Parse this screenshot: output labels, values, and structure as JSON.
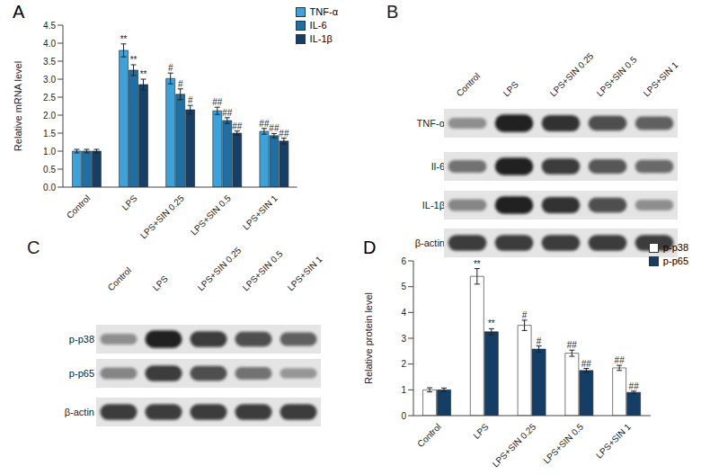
{
  "chart_data": [
    {
      "type": "bar",
      "title": "A",
      "y_label": "Relative mRNA level",
      "categories": [
        "Control",
        "LPS",
        "LPS+SIN 0.25",
        "LPS+SIN 0.5",
        "LPS+SIN 1"
      ],
      "ylim": [
        0,
        4.5
      ],
      "yticks": [
        {
          "value": 0,
          "label": "0.0"
        },
        0.5,
        {
          "value": 1,
          "label": "1.0"
        },
        1.5,
        {
          "value": 2,
          "label": "2.0"
        },
        2.5,
        {
          "value": 3,
          "label": "3.0"
        },
        3.5,
        {
          "value": 4,
          "label": "4.0"
        },
        4.5
      ],
      "grid": false,
      "legend": "top right",
      "series": [
        {
          "name": "TNF-α",
          "color": "#3aa3dc",
          "values": [
            1.0,
            3.8,
            3.02,
            2.12,
            1.55
          ],
          "error": [
            0.05,
            0.18,
            0.15,
            0.1,
            0.08
          ],
          "annotations": [
            null,
            "**",
            "#",
            "##",
            "##"
          ]
        },
        {
          "name": "IL-6",
          "color": "#1f6fa3",
          "values": [
            1.0,
            3.25,
            2.58,
            1.85,
            1.43
          ],
          "error": [
            0.05,
            0.15,
            0.15,
            0.08,
            0.06
          ],
          "annotations": [
            null,
            "**",
            "#",
            "##",
            "##"
          ]
        },
        {
          "name": "IL-1β",
          "color": "#153f66",
          "values": [
            1.0,
            2.85,
            2.15,
            1.5,
            1.28
          ],
          "error": [
            0.05,
            0.15,
            0.12,
            0.06,
            0.08
          ],
          "annotations": [
            null,
            "**",
            "#",
            "##",
            "##"
          ]
        }
      ]
    },
    {
      "type": "blot",
      "title": "B",
      "categories": [
        "Control",
        "LPS",
        "LPS+SIN 0.25",
        "LPS+SIN 0.5",
        "LPS+SIN 1"
      ],
      "series": [
        {
          "name": "TNF-α",
          "values": [
            0.35,
            0.95,
            0.85,
            0.7,
            0.6
          ]
        },
        {
          "name": "Il-6",
          "values": [
            0.5,
            0.95,
            0.8,
            0.65,
            0.55
          ]
        },
        {
          "name": "IL-1β",
          "values": [
            0.4,
            0.95,
            0.85,
            0.7,
            0.35
          ]
        },
        {
          "name": "β-actin",
          "values": [
            0.8,
            0.8,
            0.8,
            0.8,
            0.8
          ]
        }
      ]
    },
    {
      "type": "blot",
      "title": "C",
      "categories": [
        "Control",
        "LPS",
        "LPS+SIN 0.25",
        "LPS+SIN 0.5",
        "LPS+SIN 1"
      ],
      "series": [
        {
          "name": "p-p38",
          "values": [
            0.35,
            0.95,
            0.8,
            0.7,
            0.6
          ]
        },
        {
          "name": "p-p65",
          "values": [
            0.4,
            0.8,
            0.7,
            0.5,
            0.3
          ]
        },
        {
          "name": "β-actin",
          "values": [
            0.8,
            0.8,
            0.8,
            0.8,
            0.8
          ]
        }
      ]
    },
    {
      "type": "bar",
      "title": "D",
      "y_label": "Relative protein level",
      "categories": [
        "Control",
        "LPS",
        "LPS+SIN 0.25",
        "LPS+SIN 0.5",
        "LPS+SIN 1"
      ],
      "ylim": [
        0,
        6
      ],
      "yticks": [
        0,
        1,
        2,
        3,
        4,
        5,
        6
      ],
      "grid": false,
      "legend": "top right",
      "series": [
        {
          "name": "p-p38",
          "color": "#ffffff",
          "values": [
            1.0,
            5.4,
            3.5,
            2.42,
            1.85
          ],
          "error": [
            0.08,
            0.3,
            0.2,
            0.12,
            0.1
          ],
          "annotations": [
            null,
            "**",
            "#",
            "##",
            "##"
          ]
        },
        {
          "name": "p-p65",
          "color": "#153e66",
          "values": [
            1.0,
            3.25,
            2.58,
            1.75,
            0.9
          ],
          "error": [
            0.07,
            0.12,
            0.12,
            0.08,
            0.05
          ],
          "annotations": [
            null,
            "**",
            "#",
            "##",
            "##"
          ]
        }
      ]
    }
  ]
}
